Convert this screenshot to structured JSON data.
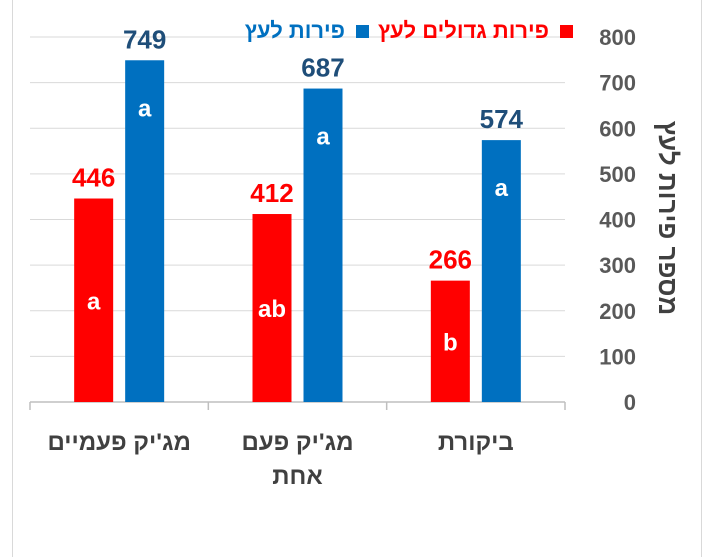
{
  "chart_data": {
    "type": "bar",
    "categories": [
      [
        "מג'יק פעמיים"
      ],
      [
        "מג'יק פעם",
        "אחת"
      ],
      [
        "ביקורת"
      ]
    ],
    "series": [
      {
        "name": "פירות גדולים לעץ",
        "color": "#ff0000",
        "values": [
          446,
          412,
          266
        ],
        "letters": [
          "a",
          "ab",
          "b"
        ]
      },
      {
        "name": "פירות לעץ",
        "color": "#0070c0",
        "label_color": "#1f4e79",
        "values": [
          749,
          687,
          574
        ],
        "letters": [
          "a",
          "a",
          "a"
        ]
      }
    ],
    "ylabel": "מספר פירות לעץ",
    "ylim": [
      0,
      800
    ],
    "yticks": [
      0,
      100,
      200,
      300,
      400,
      500,
      600,
      700,
      800
    ],
    "grid": true,
    "legend_position": "top",
    "y_axis_side": "right"
  }
}
